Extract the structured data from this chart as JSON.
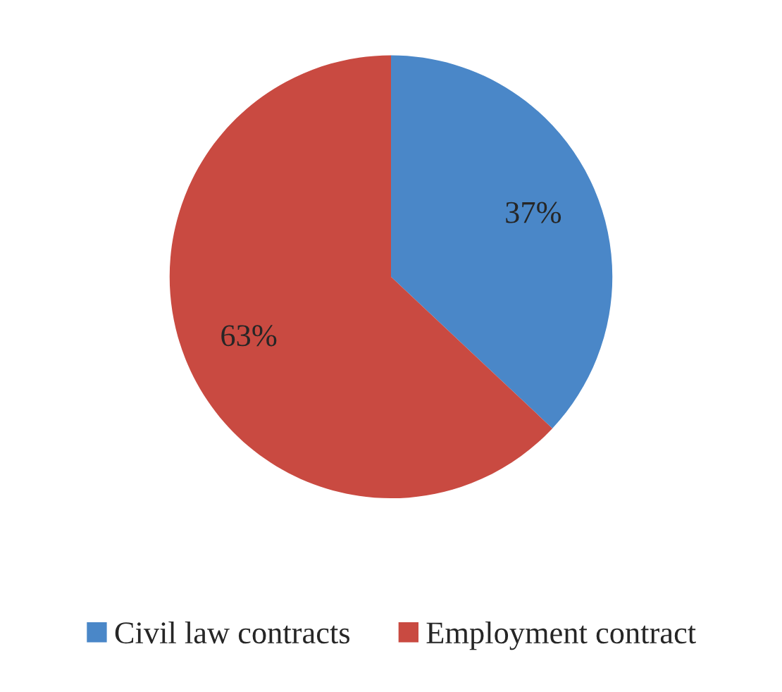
{
  "chart_data": {
    "type": "pie",
    "categories": [
      "Civil law contracts",
      "Employment contract"
    ],
    "values": [
      37,
      63
    ],
    "colors": [
      "#4a87c8",
      "#c94a41"
    ],
    "value_labels": [
      "37%",
      "63%"
    ],
    "legend": "bottom"
  }
}
